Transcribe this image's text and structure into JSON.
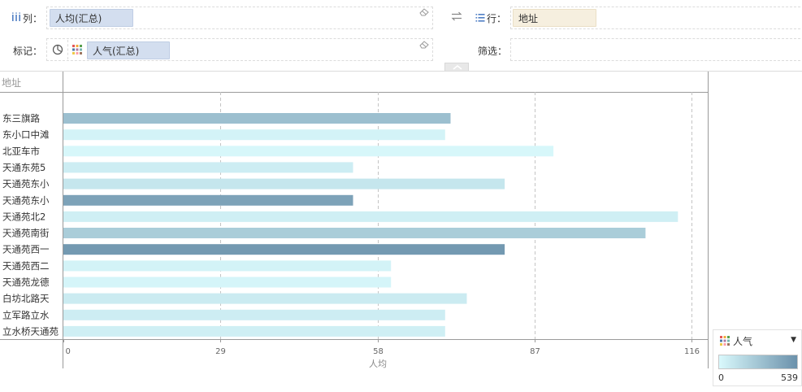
{
  "shelves": {
    "columns": {
      "icon": "columns-icon",
      "label": "列：",
      "pill": "人均(汇总)"
    },
    "rows": {
      "icon": "rows-icon",
      "label": "行：",
      "pill": "地址"
    },
    "marks": {
      "label": "标记：",
      "pill": "人气(汇总)"
    },
    "filter": {
      "label": "筛选："
    }
  },
  "colors": {
    "pill_blue": "#d3deef",
    "pill_beige": "#f6efdf",
    "bar_light": "#d9f9fc",
    "bar_dark": "#6b91ab"
  },
  "legend": {
    "icon": "color-palette-icon",
    "title": "人气",
    "min": "0",
    "max": "539"
  },
  "chart_data": {
    "type": "bar",
    "orientation": "horizontal",
    "row_header": "地址",
    "categories": [
      "东三旗路",
      "东小口中滩",
      "北亚车市",
      "天通东苑5",
      "天通苑东小",
      "天通苑东小",
      "天通苑北2",
      "天通苑南街",
      "天通苑西一",
      "天通苑西二",
      "天通苑龙德",
      "白坊北路天",
      "立军路立水",
      "立水桥天通苑"
    ],
    "series": [
      {
        "values": [
          71.5,
          70.5,
          90.5,
          53.5,
          81.5,
          53.5,
          113.5,
          107.5,
          81.5,
          60.5,
          60.5,
          74.5,
          70.5,
          70.5
        ]
      }
    ],
    "color_values": [
      300,
      30,
      10,
      60,
      100,
      450,
      50,
      230,
      500,
      30,
      20,
      70,
      60,
      50
    ],
    "xticks": [
      "0",
      "29",
      "58",
      "87",
      "116"
    ],
    "xlim": [
      0,
      116
    ],
    "xlabel": "人均",
    "grid": "vertical-dashed",
    "color_legend": {
      "min": 0,
      "max": 539
    }
  }
}
